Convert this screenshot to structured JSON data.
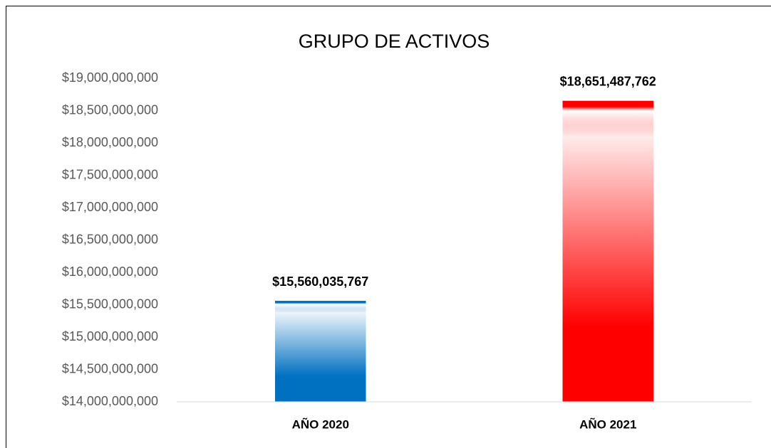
{
  "chart_data": {
    "type": "bar",
    "title": "GRUPO DE ACTIVOS",
    "categories": [
      "AÑO 2020",
      "AÑO 2021"
    ],
    "values": [
      15560035767,
      18651487762
    ],
    "value_labels": [
      "$15,560,035,767",
      "$18,651,487,762"
    ],
    "colors": [
      "#0070c0",
      "#ff0000"
    ],
    "ylim": [
      14000000000,
      19000000000
    ],
    "yticks": [
      {
        "value": 14000000000,
        "label": "$14,000,000,000"
      },
      {
        "value": 14500000000,
        "label": "$14,500,000,000"
      },
      {
        "value": 15000000000,
        "label": "$15,000,000,000"
      },
      {
        "value": 15500000000,
        "label": "$15,500,000,000"
      },
      {
        "value": 16000000000,
        "label": "$16,000,000,000"
      },
      {
        "value": 16500000000,
        "label": "$16,500,000,000"
      },
      {
        "value": 17000000000,
        "label": "$17,000,000,000"
      },
      {
        "value": 17500000000,
        "label": "$17,500,000,000"
      },
      {
        "value": 18000000000,
        "label": "$18,000,000,000"
      },
      {
        "value": 18500000000,
        "label": "$18,500,000,000"
      },
      {
        "value": 19000000000,
        "label": "$19,000,000,000"
      }
    ],
    "grid": false
  }
}
